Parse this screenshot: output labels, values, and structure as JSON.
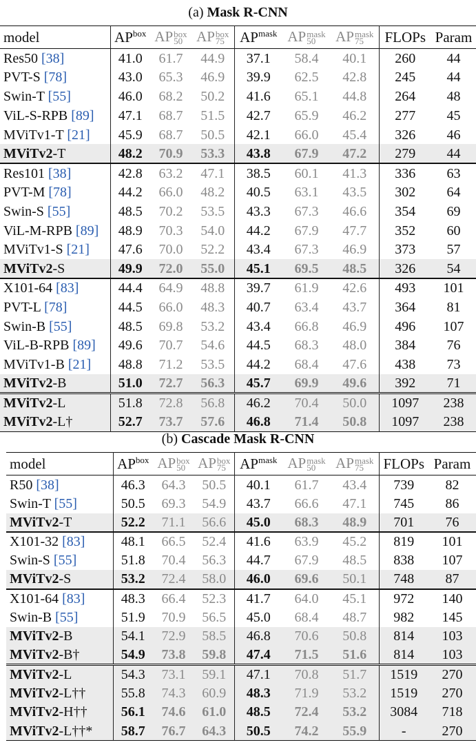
{
  "tables": [
    {
      "caption_prefix": "(a) ",
      "caption_bold": "Mask R-CNN",
      "headers": {
        "model": "model",
        "ap_box_main": "AP",
        "ap_box_sup": "box",
        "ap_box50_main": "AP",
        "ap_box50_sup": "box",
        "ap_box50_sub": "50",
        "ap_box75_main": "AP",
        "ap_box75_sup": "box",
        "ap_box75_sub": "75",
        "ap_mask_main": "AP",
        "ap_mask_sup": "mask",
        "ap_mask50_main": "AP",
        "ap_mask50_sup": "mask",
        "ap_mask50_sub": "50",
        "ap_mask75_main": "AP",
        "ap_mask75_sup": "mask",
        "ap_mask75_sub": "75",
        "flops": "FLOPs",
        "param": "Param"
      },
      "rows": [
        {
          "name": "Res50",
          "bold_name": "",
          "suffix": "",
          "cite": "[38]",
          "v": [
            "41.0",
            "61.7",
            "44.9",
            "37.1",
            "58.4",
            "40.1",
            "260",
            "44"
          ]
        },
        {
          "name": "PVT-S",
          "bold_name": "",
          "suffix": "",
          "cite": "[78]",
          "v": [
            "43.0",
            "65.3",
            "46.9",
            "39.9",
            "62.5",
            "42.8",
            "245",
            "44"
          ]
        },
        {
          "name": "Swin-T",
          "bold_name": "",
          "suffix": "",
          "cite": "[55]",
          "v": [
            "46.0",
            "68.2",
            "50.2",
            "41.6",
            "65.1",
            "44.8",
            "264",
            "48"
          ]
        },
        {
          "name": "ViL-S-RPB",
          "bold_name": "",
          "suffix": "",
          "cite": "[89]",
          "v": [
            "47.1",
            "68.7",
            "51.5",
            "42.7",
            "65.9",
            "46.2",
            "277",
            "45"
          ]
        },
        {
          "name": "MViTv1-T",
          "bold_name": "",
          "suffix": "",
          "cite": "[21]",
          "v": [
            "45.9",
            "68.7",
            "50.5",
            "42.1",
            "66.0",
            "45.4",
            "326",
            "46"
          ]
        },
        {
          "name": "",
          "bold_name": "MViTv2",
          "suffix": "-T",
          "cite": "",
          "v": [
            "48.2",
            "70.9",
            "53.3",
            "43.8",
            "67.9",
            "47.2",
            "279",
            "44"
          ]
        },
        {
          "name": "Res101",
          "bold_name": "",
          "suffix": "",
          "cite": "[38]",
          "v": [
            "42.8",
            "63.2",
            "47.1",
            "38.5",
            "60.1",
            "41.3",
            "336",
            "63"
          ]
        },
        {
          "name": "PVT-M",
          "bold_name": "",
          "suffix": "",
          "cite": "[78]",
          "v": [
            "44.2",
            "66.0",
            "48.2",
            "40.5",
            "63.1",
            "43.5",
            "302",
            "64"
          ]
        },
        {
          "name": "Swin-S",
          "bold_name": "",
          "suffix": "",
          "cite": "[55]",
          "v": [
            "48.5",
            "70.2",
            "53.5",
            "43.3",
            "67.3",
            "46.6",
            "354",
            "69"
          ]
        },
        {
          "name": "ViL-M-RPB",
          "bold_name": "",
          "suffix": "",
          "cite": "[89]",
          "v": [
            "48.9",
            "70.3",
            "54.0",
            "44.2",
            "67.9",
            "47.7",
            "352",
            "60"
          ]
        },
        {
          "name": "MViTv1-S",
          "bold_name": "",
          "suffix": "",
          "cite": "[21]",
          "v": [
            "47.6",
            "70.0",
            "52.2",
            "43.4",
            "67.3",
            "46.9",
            "373",
            "57"
          ]
        },
        {
          "name": "",
          "bold_name": "MViTv2",
          "suffix": "-S",
          "cite": "",
          "v": [
            "49.9",
            "72.0",
            "55.0",
            "45.1",
            "69.5",
            "48.5",
            "326",
            "54"
          ]
        },
        {
          "name": "X101-64",
          "bold_name": "",
          "suffix": "",
          "cite": "[83]",
          "v": [
            "44.4",
            "64.9",
            "48.8",
            "39.7",
            "61.9",
            "42.6",
            "493",
            "101"
          ]
        },
        {
          "name": "PVT-L",
          "bold_name": "",
          "suffix": "",
          "cite": "[78]",
          "v": [
            "44.5",
            "66.0",
            "48.3",
            "40.7",
            "63.4",
            "43.7",
            "364",
            "81"
          ]
        },
        {
          "name": "Swin-B",
          "bold_name": "",
          "suffix": "",
          "cite": "[55]",
          "v": [
            "48.5",
            "69.8",
            "53.2",
            "43.4",
            "66.8",
            "46.9",
            "496",
            "107"
          ]
        },
        {
          "name": "ViL-B-RPB",
          "bold_name": "",
          "suffix": "",
          "cite": "[89]",
          "v": [
            "49.6",
            "70.7",
            "54.6",
            "44.5",
            "68.3",
            "48.0",
            "384",
            "76"
          ]
        },
        {
          "name": "MViTv1-B",
          "bold_name": "",
          "suffix": "",
          "cite": "[21]",
          "v": [
            "48.8",
            "71.2",
            "53.5",
            "44.2",
            "68.4",
            "47.6",
            "438",
            "73"
          ]
        },
        {
          "name": "",
          "bold_name": "MViTv2",
          "suffix": "-B",
          "cite": "",
          "v": [
            "51.0",
            "72.7",
            "56.3",
            "45.7",
            "69.9",
            "49.6",
            "392",
            "71"
          ]
        },
        {
          "name": "",
          "bold_name": "MViTv2",
          "suffix": "-L",
          "cite": "",
          "v": [
            "51.8",
            "72.8",
            "56.8",
            "46.2",
            "70.4",
            "50.0",
            "1097",
            "238"
          ]
        },
        {
          "name": "",
          "bold_name": "MViTv2",
          "suffix": "-L†",
          "cite": "",
          "v": [
            "52.7",
            "73.7",
            "57.6",
            "46.8",
            "71.4",
            "50.8",
            "1097",
            "238"
          ]
        }
      ]
    },
    {
      "caption_prefix": "(b) ",
      "caption_bold": "Cascade Mask R-CNN",
      "headers": {
        "model": "model",
        "ap_box_main": "AP",
        "ap_box_sup": "box",
        "ap_box50_main": "AP",
        "ap_box50_sup": "box",
        "ap_box50_sub": "50",
        "ap_box75_main": "AP",
        "ap_box75_sup": "box",
        "ap_box75_sub": "75",
        "ap_mask_main": "AP",
        "ap_mask_sup": "mask",
        "ap_mask50_main": "AP",
        "ap_mask50_sup": "mask",
        "ap_mask50_sub": "50",
        "ap_mask75_main": "AP",
        "ap_mask75_sup": "mask",
        "ap_mask75_sub": "75",
        "flops": "FLOPs",
        "param": "Param"
      },
      "rows": [
        {
          "name": "R50",
          "bold_name": "",
          "suffix": "",
          "cite": "[38]",
          "v": [
            "46.3",
            "64.3",
            "50.5",
            "40.1",
            "61.7",
            "43.4",
            "739",
            "82"
          ]
        },
        {
          "name": "Swin-T",
          "bold_name": "",
          "suffix": "",
          "cite": "[55]",
          "v": [
            "50.5",
            "69.3",
            "54.9",
            "43.7",
            "66.6",
            "47.1",
            "745",
            "86"
          ]
        },
        {
          "name": "",
          "bold_name": "MViTv2",
          "suffix": "-T",
          "cite": "",
          "v": [
            "52.2",
            "71.1",
            "56.6",
            "45.0",
            "68.3",
            "48.9",
            "701",
            "76"
          ]
        },
        {
          "name": "X101-32",
          "bold_name": "",
          "suffix": "",
          "cite": "[83]",
          "v": [
            "48.1",
            "66.5",
            "52.4",
            "41.6",
            "63.9",
            "45.2",
            "819",
            "101"
          ]
        },
        {
          "name": "Swin-S",
          "bold_name": "",
          "suffix": "",
          "cite": "[55]",
          "v": [
            "51.8",
            "70.4",
            "56.3",
            "44.7",
            "67.9",
            "48.5",
            "838",
            "107"
          ]
        },
        {
          "name": "",
          "bold_name": "MViTv2",
          "suffix": "-S",
          "cite": "",
          "v": [
            "53.2",
            "72.4",
            "58.0",
            "46.0",
            "69.6",
            "50.1",
            "748",
            "87"
          ]
        },
        {
          "name": "X101-64",
          "bold_name": "",
          "suffix": "",
          "cite": "[83]",
          "v": [
            "48.3",
            "66.4",
            "52.3",
            "41.7",
            "64.0",
            "45.1",
            "972",
            "140"
          ]
        },
        {
          "name": "Swin-B",
          "bold_name": "",
          "suffix": "",
          "cite": "[55]",
          "v": [
            "51.9",
            "70.9",
            "56.5",
            "45.0",
            "68.4",
            "48.7",
            "982",
            "145"
          ]
        },
        {
          "name": "",
          "bold_name": "MViTv2",
          "suffix": "-B",
          "cite": "",
          "v": [
            "54.1",
            "72.9",
            "58.5",
            "46.8",
            "70.6",
            "50.8",
            "814",
            "103"
          ]
        },
        {
          "name": "",
          "bold_name": "MViTv2",
          "suffix": "-B†",
          "cite": "",
          "v": [
            "54.9",
            "73.8",
            "59.8",
            "47.4",
            "71.5",
            "51.6",
            "814",
            "103"
          ]
        },
        {
          "name": "",
          "bold_name": "MViTv2",
          "suffix": "-L",
          "cite": "",
          "v": [
            "54.3",
            "73.1",
            "59.1",
            "47.1",
            "70.8",
            "51.7",
            "1519",
            "270"
          ]
        },
        {
          "name": "",
          "bold_name": "MViTv2",
          "suffix": "-L††",
          "cite": "",
          "v": [
            "55.8",
            "74.3",
            "60.9",
            "48.3",
            "71.9",
            "53.2",
            "1519",
            "270"
          ]
        },
        {
          "name": "",
          "bold_name": "MViTv2",
          "suffix": "-H††",
          "cite": "",
          "v": [
            "56.1",
            "74.6",
            "61.0",
            "48.5",
            "72.4",
            "53.2",
            "3084",
            "718"
          ]
        },
        {
          "name": "",
          "bold_name": "MViTv2",
          "suffix": "-L††*",
          "cite": "",
          "v": [
            "58.7",
            "76.7",
            "64.3",
            "50.5",
            "74.2",
            "55.9",
            "-",
            "270"
          ]
        }
      ]
    }
  ]
}
